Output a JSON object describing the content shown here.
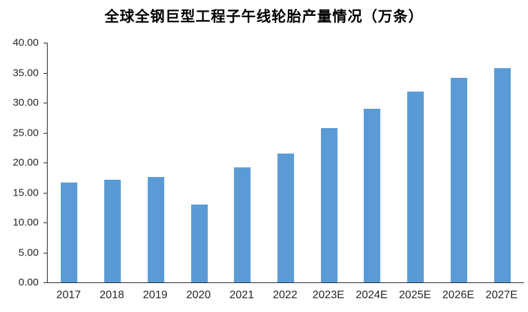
{
  "chart_data": {
    "type": "bar",
    "title": "全球全钢巨型工程子午线轮胎产量情况（万条）",
    "categories": [
      "2017",
      "2018",
      "2019",
      "2020",
      "2021",
      "2022",
      "2023E",
      "2024E",
      "2025E",
      "2026E",
      "2027E"
    ],
    "values": [
      16.7,
      17.1,
      17.6,
      13.0,
      19.2,
      21.5,
      25.8,
      29.0,
      31.8,
      34.1,
      35.8
    ],
    "xlabel": "",
    "ylabel": "",
    "ylim": [
      0,
      40
    ],
    "ytick_step": 5,
    "ytick_labels": [
      "0.00",
      "5.00",
      "10.00",
      "15.00",
      "20.00",
      "25.00",
      "30.00",
      "35.00",
      "40.00"
    ],
    "bar_color": "#5B9BD5",
    "axis_color": "#262626",
    "grid": false,
    "legend": "none"
  }
}
